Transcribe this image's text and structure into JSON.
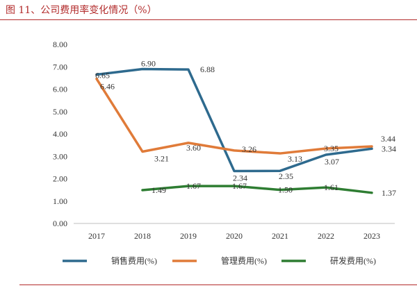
{
  "page": {
    "title": "图 11、公司费用率变化情况（%）"
  },
  "chart_data": {
    "type": "line",
    "title": "",
    "xlabel": "",
    "ylabel": "",
    "x": [
      "2017",
      "2018",
      "2019",
      "2020",
      "2021",
      "2022",
      "2023"
    ],
    "ylim": [
      0,
      8
    ],
    "y_ticks": [
      "0.00",
      "1.00",
      "2.00",
      "3.00",
      "4.00",
      "5.00",
      "6.00",
      "7.00",
      "8.00"
    ],
    "grid": false,
    "legend_position": "bottom",
    "series": [
      {
        "name": "销售费用(%)",
        "color": "#2e6a8e",
        "values": [
          6.65,
          6.9,
          6.88,
          2.34,
          2.35,
          3.07,
          3.34
        ],
        "labels": [
          "6.65",
          "6.90",
          "6.88",
          "2.34",
          "2.35",
          "3.07",
          "3.34"
        ]
      },
      {
        "name": "管理费用(%)",
        "color": "#e07b39",
        "values": [
          6.46,
          3.21,
          3.6,
          3.26,
          3.13,
          3.35,
          3.44
        ],
        "labels": [
          "6.46",
          "3.21",
          "3.60",
          "3.26",
          "3.13",
          "3.35",
          "3.44"
        ]
      },
      {
        "name": "研发费用(%)",
        "color": "#2e7d32",
        "values": [
          null,
          1.49,
          1.67,
          1.67,
          1.5,
          1.61,
          1.37
        ],
        "labels": [
          null,
          "1.49",
          "1.67",
          "1.67",
          "1.50",
          "1.61",
          "1.37"
        ]
      }
    ]
  }
}
